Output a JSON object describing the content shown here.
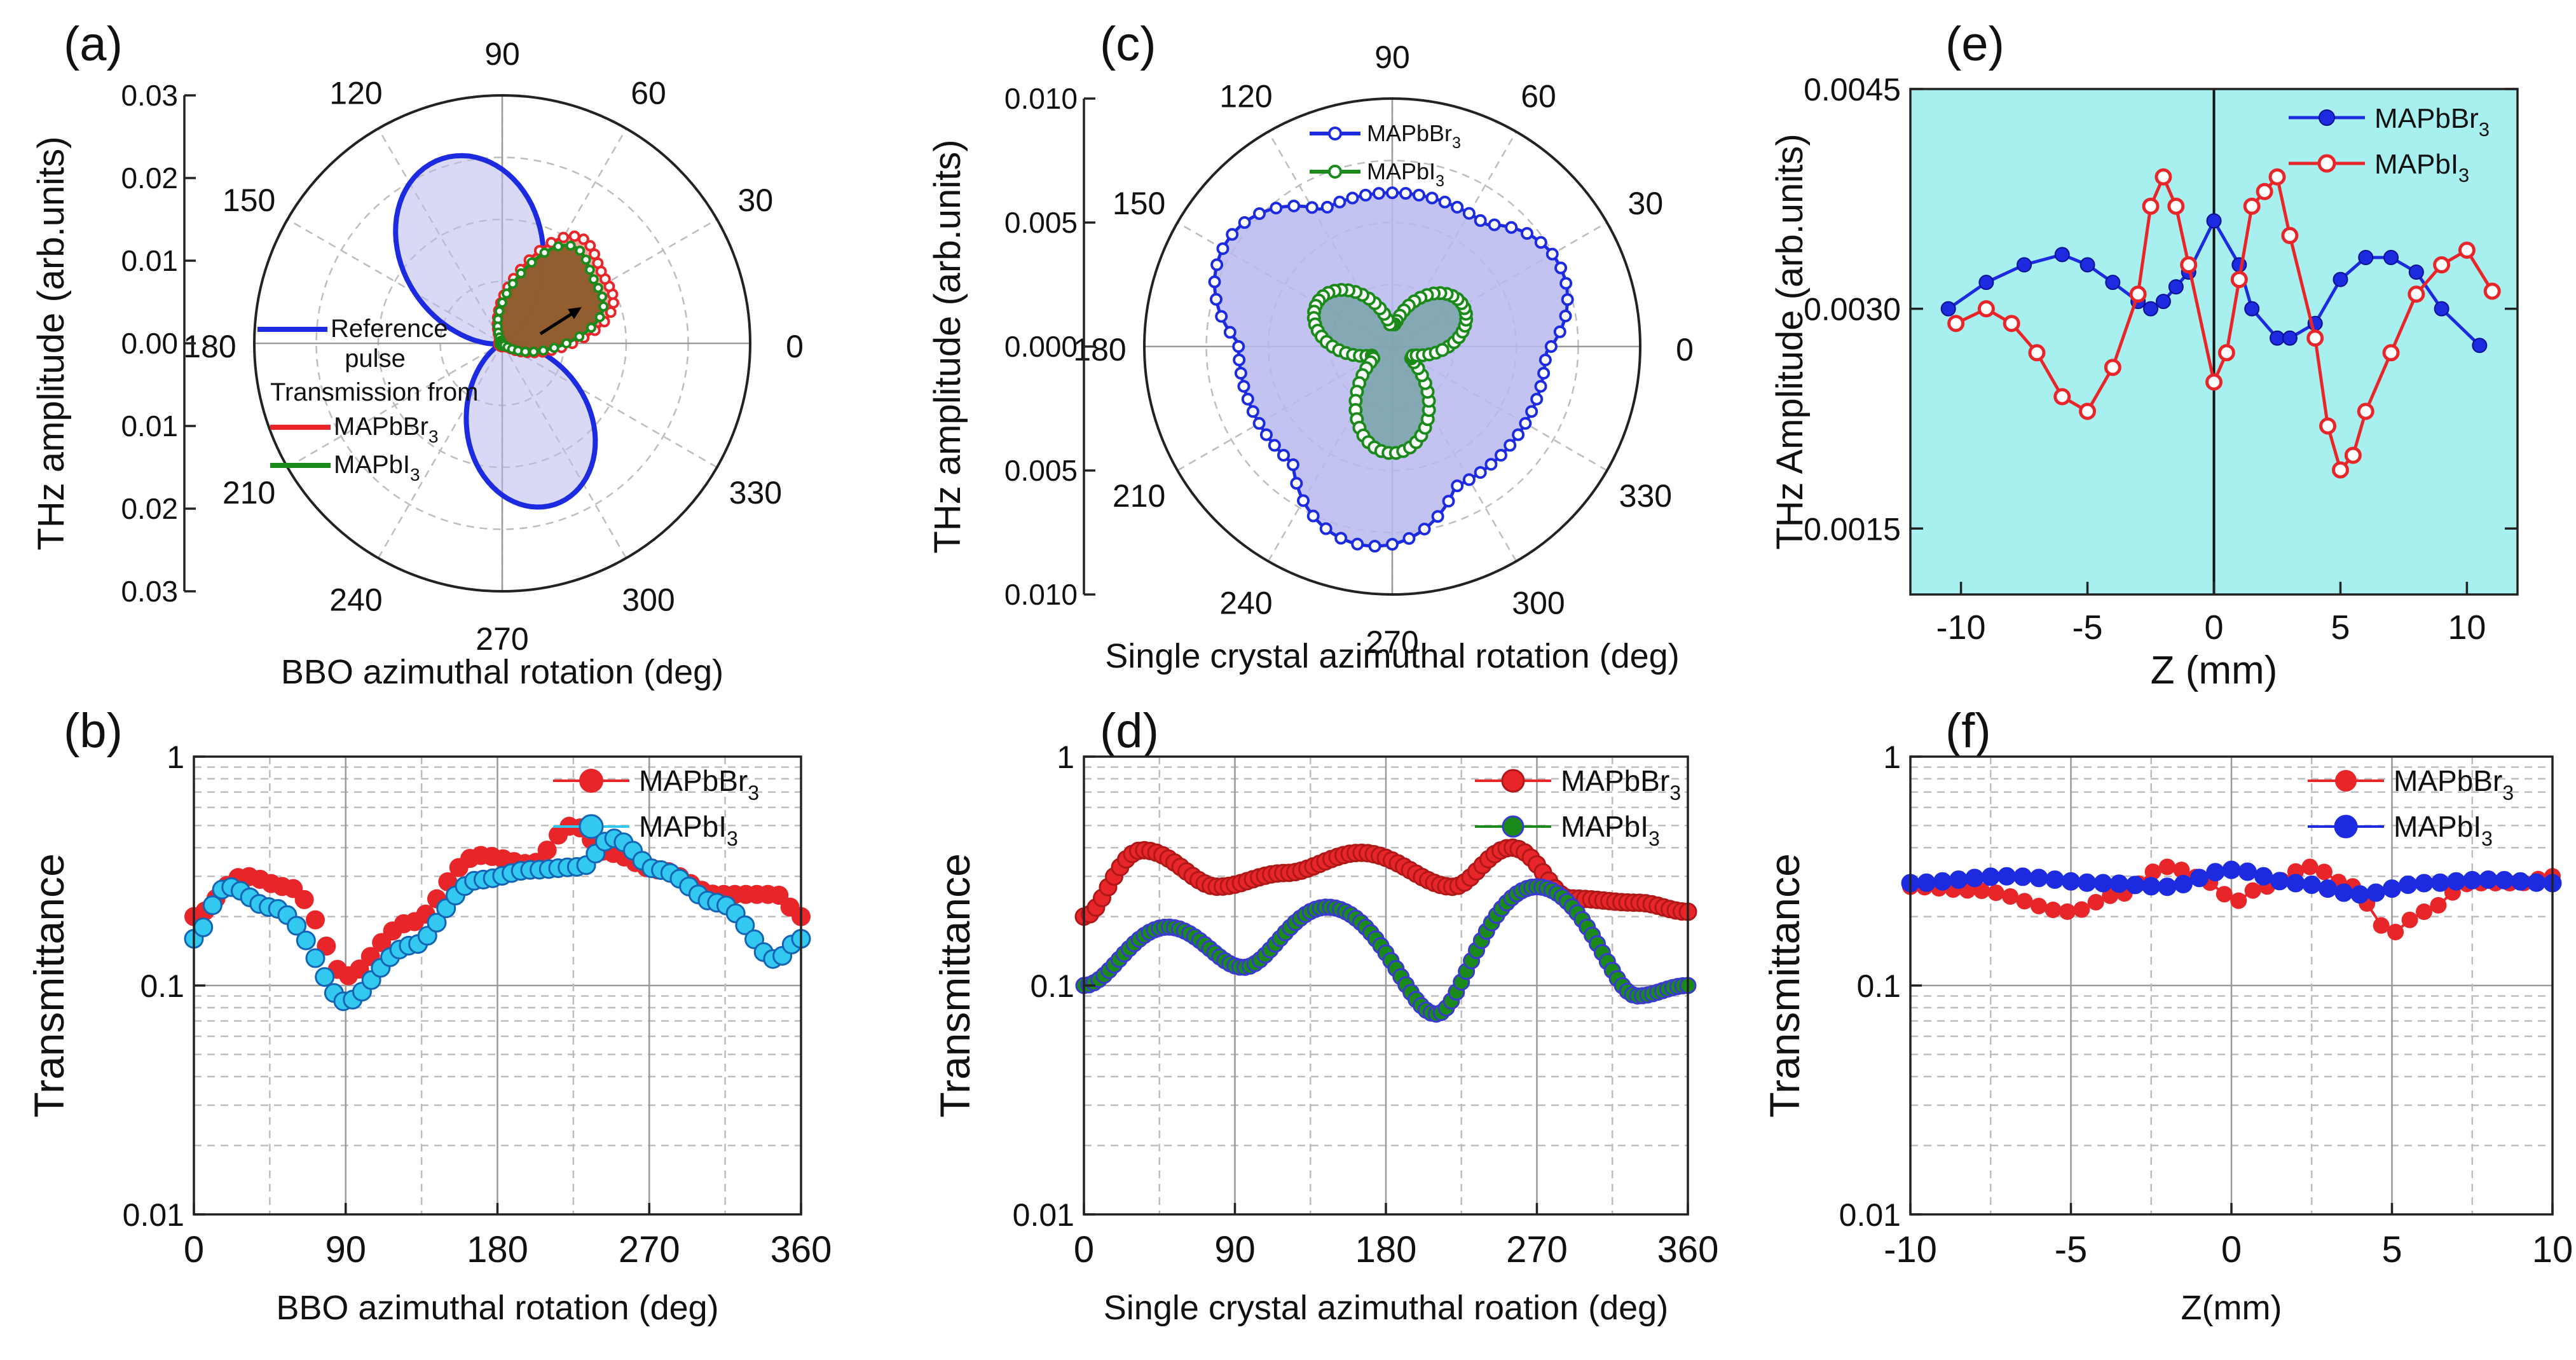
{
  "figure": {
    "panel_labels": [
      "(a)",
      "(b)",
      "(c)",
      "(d)",
      "(e)",
      "(f)"
    ]
  },
  "colors": {
    "red": "#e8262a",
    "blue": "#1c2be0",
    "green": "#1a8a1a",
    "cyan": "#33c8f0",
    "teal_bg": "#a8f0f0",
    "red_fill": "#f4a09a",
    "blue_fill": "#b9b9ee",
    "brown_fill": "#8c5a2a"
  },
  "chart_data": [
    {
      "panel": "(a)",
      "type": "polar",
      "ylabel": "THz amplitude (arb.units)",
      "xlabel": "BBO azimuthal rotation (deg)",
      "radial_ticks_upper": [
        "0.03",
        "0.02",
        "0.01",
        "0.00"
      ],
      "radial_ticks_lower": [
        "0.01",
        "0.02",
        "0.03"
      ],
      "angle_labels": [
        "0",
        "30",
        "60",
        "90",
        "120",
        "150",
        "180",
        "210",
        "240",
        "270",
        "300",
        "330"
      ],
      "legend": {
        "line1": "Reference",
        "line2": "pulse",
        "line3": "Transmission from",
        "series": [
          "MAPbBr",
          "MAPbI"
        ],
        "subscript": "3"
      },
      "series": [
        {
          "name": "Reference pulse",
          "color": "blue",
          "lobes": [
            {
              "angle": 108,
              "r": 0.0235,
              "p": 2.2
            },
            {
              "angle": 288,
              "r": 0.0205,
              "p": 2.2
            }
          ],
          "base": 0.0004
        },
        {
          "name": "MAPbBr3",
          "color": "red",
          "lobes": [
            {
              "angle": 40,
              "r": 0.0128,
              "p": 2.0
            }
          ],
          "bumps": [
            {
              "angle": 55,
              "r": 0.0038,
              "w": 12
            },
            {
              "angle": 18,
              "r": 0.003,
              "w": 12
            }
          ],
          "base": 0.0004
        },
        {
          "name": "MAPbI3",
          "color": "green",
          "lobes": [
            {
              "angle": 40,
              "r": 0.0118,
              "p": 2.0
            }
          ],
          "bumps": [
            {
              "angle": 55,
              "r": 0.0034,
              "w": 12
            },
            {
              "angle": 18,
              "r": 0.0026,
              "w": 12
            }
          ],
          "base": 0.0003
        }
      ],
      "r_max": 0.03
    },
    {
      "panel": "(b)",
      "type": "scatter",
      "yscale": "log",
      "ylabel": "Transmittance",
      "xlabel": "BBO azimuthal rotation (deg)",
      "xlim": [
        0,
        360
      ],
      "ylim": [
        0.01,
        1
      ],
      "xticks": [
        "0",
        "90",
        "180",
        "270",
        "360"
      ],
      "yticks": [
        "0.01",
        "0.1",
        "1"
      ],
      "legend": [
        "MAPbBr",
        "MAPbI"
      ],
      "series": [
        {
          "name": "MAPbBr3",
          "color": "red",
          "x": [
            0,
            30,
            55,
            90,
            130,
            170,
            200,
            225,
            245,
            275,
            310,
            345,
            360
          ],
          "y": [
            0.2,
            0.3,
            0.27,
            0.11,
            0.19,
            0.37,
            0.34,
            0.5,
            0.38,
            0.32,
            0.25,
            0.25,
            0.2
          ]
        },
        {
          "name": "MAPbI3",
          "color": "cyan",
          "x": [
            0,
            20,
            45,
            90,
            130,
            170,
            200,
            230,
            248,
            275,
            310,
            345,
            360
          ],
          "y": [
            0.16,
            0.27,
            0.22,
            0.085,
            0.15,
            0.29,
            0.32,
            0.33,
            0.44,
            0.32,
            0.23,
            0.13,
            0.16
          ]
        }
      ]
    },
    {
      "panel": "(c)",
      "type": "polar",
      "ylabel": "THz amplitude (arb.units)",
      "xlabel": "Single crystal azimuthal rotation (deg)",
      "radial_ticks_upper": [
        "0.010",
        "0.005",
        "0.000"
      ],
      "radial_ticks_lower": [
        "0.005",
        "0.010"
      ],
      "angle_labels": [
        "0",
        "30",
        "60",
        "90",
        "120",
        "150",
        "180",
        "210",
        "240",
        "270",
        "300",
        "330"
      ],
      "legend": {
        "series": [
          "MAPbBr",
          "MAPbI"
        ],
        "subscript": "3"
      },
      "series": [
        {
          "name": "MAPbBr3",
          "color": "blue",
          "lobes": [
            {
              "angle": 25,
              "r": 0.0075,
              "p": 1.6
            },
            {
              "angle": 148,
              "r": 0.0079,
              "p": 1.6
            },
            {
              "angle": 262,
              "r": 0.0081,
              "p": 1.6
            }
          ],
          "base": 0.0062
        },
        {
          "name": "MAPbI3",
          "color": "green",
          "lobes": [
            {
              "angle": 30,
              "r": 0.0033,
              "p": 2.6
            },
            {
              "angle": 150,
              "r": 0.0035,
              "p": 2.6
            },
            {
              "angle": 270,
              "r": 0.0043,
              "p": 2.6
            }
          ],
          "base": 0.0009
        }
      ],
      "r_max": 0.01
    },
    {
      "panel": "(d)",
      "type": "scatter",
      "yscale": "log",
      "ylabel": "Transmittance",
      "xlabel": "Single crystal azimuthal roation (deg)",
      "xlim": [
        0,
        360
      ],
      "ylim": [
        0.01,
        1
      ],
      "xticks": [
        "0",
        "90",
        "180",
        "270",
        "360"
      ],
      "yticks": [
        "0.01",
        "0.1",
        "1"
      ],
      "legend": [
        "MAPbBr",
        "MAPbI"
      ],
      "series": [
        {
          "name": "MAPbBr3",
          "color": "red",
          "x": [
            0,
            35,
            80,
            120,
            165,
            220,
            255,
            290,
            330,
            360
          ],
          "y": [
            0.2,
            0.39,
            0.27,
            0.31,
            0.38,
            0.27,
            0.4,
            0.24,
            0.23,
            0.21
          ]
        },
        {
          "name": "MAPbI3",
          "color": "green",
          "x": [
            0,
            50,
            95,
            145,
            210,
            270,
            330,
            360
          ],
          "y": [
            0.1,
            0.18,
            0.12,
            0.22,
            0.075,
            0.27,
            0.09,
            0.1
          ]
        }
      ]
    },
    {
      "panel": "(e)",
      "type": "line",
      "ylabel": "THz Amplitude (arb.units)",
      "xlabel": "Z (mm)",
      "xlim": [
        -12,
        12
      ],
      "ylim": [
        0.00105,
        0.0045
      ],
      "xticks": [
        "-10",
        "-5",
        "0",
        "5",
        "10"
      ],
      "yticks": [
        "0.0015",
        "0.0030",
        "0.0045"
      ],
      "legend": [
        "MAPbBr",
        "MAPbI"
      ],
      "series": [
        {
          "name": "MAPbBr3",
          "color": "blue",
          "x": [
            -10.5,
            -9,
            -7.5,
            -6,
            -5,
            -4,
            -3,
            -2.5,
            -2,
            -1.5,
            -1,
            0,
            1,
            1.5,
            2.5,
            3,
            4,
            5,
            6,
            7,
            8,
            9,
            10.5
          ],
          "y": [
            0.003,
            0.00318,
            0.0033,
            0.00337,
            0.0033,
            0.00318,
            0.00305,
            0.003,
            0.00305,
            0.00315,
            0.00325,
            0.0036,
            0.0033,
            0.003,
            0.0028,
            0.0028,
            0.0029,
            0.0032,
            0.00335,
            0.00335,
            0.00325,
            0.003,
            0.00275
          ]
        },
        {
          "name": "MAPbI3",
          "color": "red",
          "x": [
            -10.2,
            -9,
            -8,
            -7,
            -6,
            -5,
            -4,
            -3,
            -2.5,
            -2,
            -1.5,
            -1,
            0,
            0.5,
            1,
            1.5,
            2,
            2.5,
            3,
            4,
            4.5,
            5,
            5.5,
            6,
            7,
            8,
            9,
            10,
            11
          ],
          "y": [
            0.0029,
            0.003,
            0.0029,
            0.0027,
            0.0024,
            0.0023,
            0.0026,
            0.0031,
            0.0037,
            0.0039,
            0.0037,
            0.0033,
            0.0025,
            0.0027,
            0.0032,
            0.0037,
            0.0038,
            0.0039,
            0.0035,
            0.0028,
            0.0022,
            0.0019,
            0.002,
            0.0023,
            0.0027,
            0.0031,
            0.0033,
            0.0034,
            0.00312
          ]
        }
      ]
    },
    {
      "panel": "(f)",
      "type": "scatter",
      "yscale": "log",
      "ylabel": "Transmittance",
      "xlabel": "Z(mm)",
      "xlim": [
        -10,
        10
      ],
      "ylim": [
        0.01,
        1
      ],
      "xticks": [
        "-10",
        "-5",
        "0",
        "5",
        "10"
      ],
      "yticks": [
        "0.01",
        "0.1",
        "1"
      ],
      "legend": [
        "MAPbBr",
        "MAPbI"
      ],
      "series": [
        {
          "name": "MAPbBr3",
          "color": "red",
          "x": [
            -10,
            -8,
            -5,
            -3.5,
            -2,
            -0.5,
            0,
            1,
            2.5,
            3.5,
            5,
            6,
            7.5,
            9,
            10
          ],
          "y": [
            0.27,
            0.26,
            0.21,
            0.25,
            0.33,
            0.28,
            0.23,
            0.27,
            0.33,
            0.28,
            0.17,
            0.21,
            0.28,
            0.28,
            0.3
          ]
        },
        {
          "name": "MAPbI3",
          "color": "blue",
          "x": [
            -10,
            -7,
            -4,
            -2,
            0,
            2,
            4,
            6,
            8,
            10
          ],
          "y": [
            0.28,
            0.3,
            0.28,
            0.27,
            0.32,
            0.28,
            0.25,
            0.28,
            0.29,
            0.28
          ]
        }
      ]
    }
  ]
}
